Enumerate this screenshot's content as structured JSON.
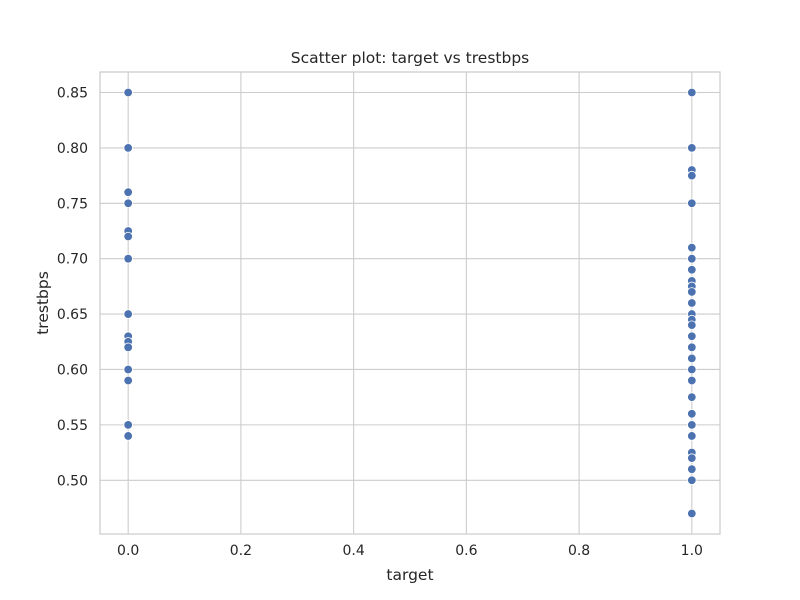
{
  "chart_data": {
    "type": "scatter",
    "title": "Scatter plot: target vs trestbps",
    "xlabel": "target",
    "ylabel": "trestbps",
    "xlim": [
      -0.05,
      1.05
    ],
    "ylim": [
      0.4515,
      0.8685
    ],
    "grid": true,
    "legend": "none",
    "point_color": "#4c72b0",
    "x_ticks": [
      0.0,
      0.2,
      0.4,
      0.6,
      0.8,
      1.0
    ],
    "x_tick_labels": [
      "0.0",
      "0.2",
      "0.4",
      "0.6",
      "0.8",
      "1.0"
    ],
    "y_ticks": [
      0.5,
      0.55,
      0.6,
      0.65,
      0.7,
      0.75,
      0.8,
      0.85
    ],
    "y_tick_labels": [
      "0.50",
      "0.55",
      "0.60",
      "0.65",
      "0.70",
      "0.75",
      "0.80",
      "0.85"
    ],
    "series": [
      {
        "points": [
          [
            0,
            0.85
          ],
          [
            0,
            0.8
          ],
          [
            0,
            0.76
          ],
          [
            0,
            0.75
          ],
          [
            0,
            0.725
          ],
          [
            0,
            0.72
          ],
          [
            0,
            0.7
          ],
          [
            0,
            0.65
          ],
          [
            0,
            0.63
          ],
          [
            0,
            0.625
          ],
          [
            0,
            0.62
          ],
          [
            0,
            0.6
          ],
          [
            0,
            0.59
          ],
          [
            0,
            0.55
          ],
          [
            0,
            0.54
          ],
          [
            1,
            0.85
          ],
          [
            1,
            0.8
          ],
          [
            1,
            0.78
          ],
          [
            1,
            0.775
          ],
          [
            1,
            0.75
          ],
          [
            1,
            0.71
          ],
          [
            1,
            0.7
          ],
          [
            1,
            0.69
          ],
          [
            1,
            0.68
          ],
          [
            1,
            0.675
          ],
          [
            1,
            0.67
          ],
          [
            1,
            0.66
          ],
          [
            1,
            0.65
          ],
          [
            1,
            0.645
          ],
          [
            1,
            0.64
          ],
          [
            1,
            0.63
          ],
          [
            1,
            0.62
          ],
          [
            1,
            0.61
          ],
          [
            1,
            0.6
          ],
          [
            1,
            0.59
          ],
          [
            1,
            0.575
          ],
          [
            1,
            0.56
          ],
          [
            1,
            0.55
          ],
          [
            1,
            0.54
          ],
          [
            1,
            0.525
          ],
          [
            1,
            0.52
          ],
          [
            1,
            0.51
          ],
          [
            1,
            0.5
          ],
          [
            1,
            0.47
          ]
        ]
      }
    ]
  }
}
